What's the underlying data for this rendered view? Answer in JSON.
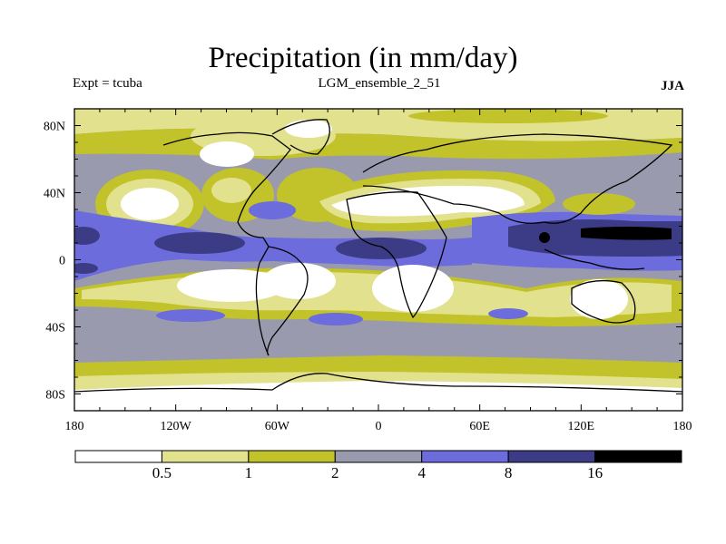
{
  "header": {
    "title": "Precipitation (in mm/day)",
    "experiment": "Expt = tcuba",
    "run": "LGM_ensemble_2_51",
    "season": "JJA"
  },
  "map": {
    "projection": "cylindrical-equidistant",
    "lon_range": [
      -180,
      180
    ],
    "lat_range": [
      -90,
      90
    ],
    "lon_ticks": [
      {
        "value": -180,
        "label": "180"
      },
      {
        "value": -120,
        "label": "120W"
      },
      {
        "value": -60,
        "label": "60W"
      },
      {
        "value": 0,
        "label": "0"
      },
      {
        "value": 60,
        "label": "60E"
      },
      {
        "value": 120,
        "label": "120E"
      },
      {
        "value": 180,
        "label": "180"
      }
    ],
    "lat_ticks": [
      {
        "value": 80,
        "label": "80N"
      },
      {
        "value": 40,
        "label": "40N"
      },
      {
        "value": 0,
        "label": "0"
      },
      {
        "value": -40,
        "label": "40S"
      },
      {
        "value": -80,
        "label": "80S"
      }
    ]
  },
  "legend": {
    "colors": [
      "#ffffff",
      "#e2e28e",
      "#c2c22a",
      "#9a9aae",
      "#6c6cdc",
      "#3c3c86",
      "#000000"
    ],
    "labels": [
      "0.5",
      "1",
      "2",
      "4",
      "8",
      "16"
    ],
    "boundaries": [
      0.5,
      1,
      2,
      4,
      8,
      16
    ]
  }
}
